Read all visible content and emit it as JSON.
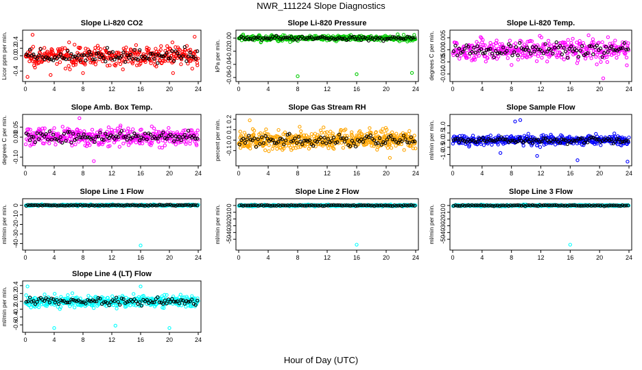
{
  "title": "NWR_111224  Slope Diagnostics",
  "xlabel": "Hour of Day (UTC)",
  "colors": {
    "red": "#ff0000",
    "green": "#00cc00",
    "magenta": "#ff00ff",
    "orange": "#ffa500",
    "blue": "#0000ff",
    "cyan": "#00ffff",
    "black": "#000000"
  },
  "chart_data": [
    {
      "type": "scatter",
      "title": "Slope Li-820 CO2",
      "ylabel": "Licor ppm per min.",
      "color": "red",
      "xlim": [
        0,
        24
      ],
      "xticks": [
        0,
        4,
        8,
        12,
        16,
        20,
        24
      ],
      "ylim": [
        -0.6,
        0.6
      ],
      "yticks": [
        -0.4,
        0.0,
        0.2,
        0.4
      ],
      "ytick_labels": [
        "-0.4",
        "0.0",
        "0.2",
        "0.4"
      ],
      "spread": 0.22,
      "n_points": 380,
      "outliers": [
        [
          1,
          0.55
        ],
        [
          0.3,
          -0.55
        ],
        [
          3.5,
          -0.5
        ],
        [
          8,
          -0.45
        ],
        [
          20.5,
          -0.45
        ],
        [
          23.5,
          0.5
        ]
      ]
    },
    {
      "type": "scatter",
      "title": "Slope Li-820 Pressure",
      "ylabel": "kPa per min.",
      "color": "green",
      "xlim": [
        0,
        24
      ],
      "xticks": [
        0,
        4,
        8,
        12,
        16,
        20,
        24
      ],
      "ylim": [
        -0.062,
        0.008
      ],
      "yticks": [
        -0.06,
        -0.04,
        -0.02,
        0.0
      ],
      "ytick_labels": [
        "-0.06",
        "-0.04",
        "-0.02",
        "0.00"
      ],
      "spread": 0.004,
      "n_points": 380,
      "outliers": [
        [
          8,
          -0.058
        ],
        [
          16,
          -0.055
        ],
        [
          23.5,
          -0.053
        ],
        [
          23.8,
          0.005
        ]
      ]
    },
    {
      "type": "scatter",
      "title": "Slope Li-820 Temp.",
      "ylabel": "degrees C per min.",
      "color": "magenta",
      "xlim": [
        0,
        24
      ],
      "xticks": [
        0,
        4,
        8,
        12,
        16,
        20,
        24
      ],
      "ylim": [
        -0.012,
        0.007
      ],
      "yticks": [
        -0.01,
        -0.005,
        0.0,
        0.005
      ],
      "ytick_labels": [
        "-0.010",
        "-0.005",
        "0.000",
        "0.005"
      ],
      "spread": 0.004,
      "n_points": 380,
      "outliers": [
        [
          20.5,
          -0.0118
        ],
        [
          18.5,
          0.006
        ]
      ]
    },
    {
      "type": "scatter",
      "title": "Slope Amb. Box Temp.",
      "ylabel": "degrees C per min.",
      "color": "magenta",
      "xlim": [
        0,
        24
      ],
      "xticks": [
        0,
        4,
        8,
        12,
        16,
        20,
        24
      ],
      "ylim": [
        -0.13,
        0.1
      ],
      "yticks": [
        -0.1,
        0.0,
        0.05
      ],
      "ytick_labels": [
        "-0.10",
        "0.00",
        "0.05"
      ],
      "spread": 0.04,
      "n_points": 380,
      "outliers": [
        [
          7.5,
          0.095
        ],
        [
          9.5,
          -0.12
        ]
      ]
    },
    {
      "type": "scatter",
      "title": "Slope Gas Stream RH",
      "ylabel": "percent per min.",
      "color": "orange",
      "xlim": [
        0,
        24
      ],
      "xticks": [
        0,
        4,
        8,
        12,
        16,
        20,
        24
      ],
      "ylim": [
        -0.22,
        0.22
      ],
      "yticks": [
        -0.1,
        0.0,
        0.1,
        0.2
      ],
      "ytick_labels": [
        "-0.1",
        "0.0",
        "0.1",
        "0.2"
      ],
      "spread": 0.08,
      "n_points": 520,
      "outliers": [
        [
          1.5,
          0.19
        ],
        [
          20.5,
          -0.17
        ]
      ]
    },
    {
      "type": "scatter",
      "title": "Slope Sample Flow",
      "ylabel": "ml/min per min.",
      "color": "blue",
      "xlim": [
        0,
        24
      ],
      "xticks": [
        0,
        4,
        8,
        12,
        16,
        20,
        24
      ],
      "ylim": [
        -1.6,
        1.6
      ],
      "yticks": [
        -1.0,
        -0.5,
        0.0,
        0.5,
        1.0
      ],
      "ytick_labels": [
        "-1.0",
        "-0.5",
        "0.0",
        "0.5",
        "1.0"
      ],
      "spread": 0.3,
      "n_points": 420,
      "outliers": [
        [
          8.5,
          1.3
        ],
        [
          9.2,
          1.4
        ],
        [
          17,
          -1.4
        ],
        [
          23.8,
          -1.5
        ],
        [
          6.5,
          -0.9
        ],
        [
          11.5,
          -1.1
        ]
      ]
    },
    {
      "type": "scatter",
      "title": "Slope Line 1 Flow",
      "ylabel": "ml/min per min.",
      "color": "cyan",
      "xlim": [
        0,
        24
      ],
      "xticks": [
        0,
        4,
        8,
        12,
        16,
        20,
        24
      ],
      "ylim": [
        -44,
        4
      ],
      "yticks": [
        -40,
        -30,
        -20,
        -10,
        0
      ],
      "ytick_labels": [
        "-40",
        "-30",
        "-20",
        "-10",
        "0"
      ],
      "spread": 0.7,
      "n_points": 380,
      "outliers": [
        [
          16,
          -42
        ]
      ]
    },
    {
      "type": "scatter",
      "title": "Slope Line 2 Flow",
      "ylabel": "ml/min per min.",
      "color": "cyan",
      "xlim": [
        0,
        24
      ],
      "xticks": [
        0,
        4,
        8,
        12,
        16,
        20,
        24
      ],
      "ylim": [
        -62,
        6
      ],
      "yticks": [
        -50,
        -40,
        -30,
        -20,
        -10,
        0
      ],
      "ytick_labels": [
        "-50",
        "-40",
        "-30",
        "-20",
        "-10",
        "0"
      ],
      "spread": 1.0,
      "n_points": 380,
      "outliers": [
        [
          16,
          -58
        ]
      ]
    },
    {
      "type": "scatter",
      "title": "Slope Line 3 Flow",
      "ylabel": "ml/min per min.",
      "color": "cyan",
      "xlim": [
        0,
        24
      ],
      "xticks": [
        0,
        4,
        8,
        12,
        16,
        20,
        24
      ],
      "ylim": [
        -62,
        6
      ],
      "yticks": [
        -50,
        -40,
        -30,
        -20,
        -10,
        0
      ],
      "ytick_labels": [
        "-50",
        "-40",
        "-30",
        "-20",
        "-10",
        "0"
      ],
      "spread": 1.0,
      "n_points": 380,
      "outliers": [
        [
          16,
          -58
        ]
      ]
    },
    {
      "type": "scatter",
      "title": "Slope Line 4 (LT) Flow",
      "ylabel": "ml/min per min.",
      "color": "cyan",
      "xlim": [
        0,
        24
      ],
      "xticks": [
        0,
        4,
        8,
        12,
        16,
        20,
        24
      ],
      "ylim": [
        -0.72,
        0.45
      ],
      "yticks": [
        -0.6,
        -0.4,
        -0.2,
        0.0,
        0.2,
        0.4
      ],
      "ytick_labels": [
        "-0.6",
        "-0.4",
        "-0.2",
        "0.0",
        "0.2",
        "0.4"
      ],
      "spread": 0.13,
      "n_points": 420,
      "outliers": [
        [
          4,
          -0.68
        ],
        [
          12.5,
          -0.62
        ],
        [
          20,
          -0.68
        ],
        [
          16,
          0.38
        ],
        [
          0.3,
          0.38
        ]
      ]
    }
  ]
}
